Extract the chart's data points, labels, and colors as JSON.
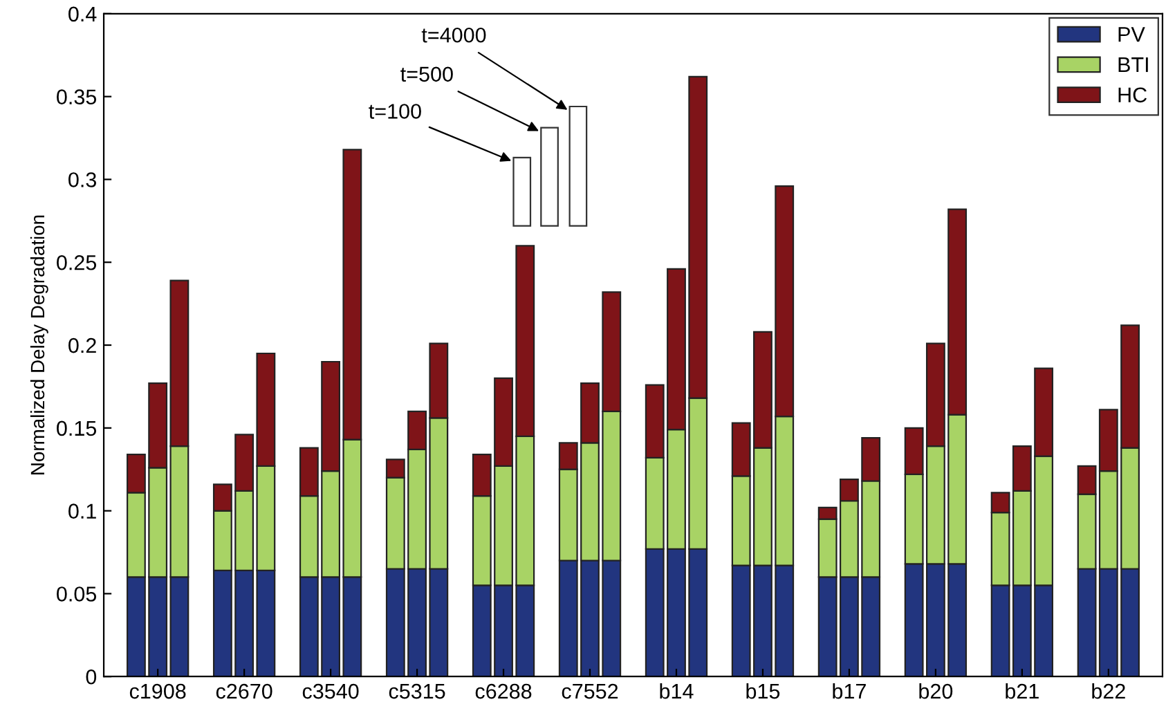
{
  "chart_data": {
    "type": "bar",
    "stacked": true,
    "ylabel": "Normalized Delay Degradation",
    "categories": [
      null,
      "c1908",
      null,
      null,
      null,
      "c2670",
      null,
      null,
      null,
      "c3540",
      null,
      null,
      null,
      "c5315",
      null,
      null,
      null,
      "c6288",
      null,
      null,
      null,
      "c7552",
      null,
      null,
      null,
      "b14",
      null,
      null,
      null,
      "b15",
      null,
      null,
      null,
      "b17",
      null,
      null,
      null,
      "b20",
      null,
      null,
      null,
      "b21",
      null,
      null,
      null,
      "b22",
      null
    ],
    "series": [
      {
        "name": "PV",
        "color": "#22357f",
        "values": [
          0.06,
          0.06,
          0.06,
          null,
          0.064,
          0.064,
          0.064,
          null,
          0.06,
          0.06,
          0.06,
          null,
          0.065,
          0.065,
          0.065,
          null,
          0.055,
          0.055,
          0.055,
          null,
          0.07,
          0.07,
          0.07,
          null,
          0.077,
          0.077,
          0.077,
          null,
          0.067,
          0.067,
          0.067,
          null,
          0.06,
          0.06,
          0.06,
          null,
          0.068,
          0.068,
          0.068,
          null,
          0.055,
          0.055,
          0.055,
          null,
          0.065,
          0.065,
          0.065
        ]
      },
      {
        "name": "BTI",
        "color": "#a8d365",
        "values": [
          0.051,
          0.066,
          0.079,
          null,
          0.036,
          0.048,
          0.063,
          null,
          0.049,
          0.064,
          0.083,
          null,
          0.055,
          0.072,
          0.091,
          null,
          0.054,
          0.072,
          0.09,
          null,
          0.055,
          0.071,
          0.09,
          null,
          0.055,
          0.072,
          0.091,
          null,
          0.054,
          0.071,
          0.09,
          null,
          0.035,
          0.046,
          0.058,
          null,
          0.054,
          0.071,
          0.09,
          null,
          0.044,
          0.057,
          0.078,
          null,
          0.045,
          0.059,
          0.073
        ]
      },
      {
        "name": "HC",
        "color": "#7f1418",
        "values": [
          0.023,
          0.051,
          0.1,
          null,
          0.016,
          0.034,
          0.068,
          null,
          0.029,
          0.066,
          0.175,
          null,
          0.011,
          0.023,
          0.045,
          null,
          0.025,
          0.053,
          0.115,
          null,
          0.016,
          0.036,
          0.072,
          null,
          0.044,
          0.097,
          0.194,
          null,
          0.032,
          0.07,
          0.139,
          null,
          0.007,
          0.013,
          0.026,
          null,
          0.028,
          0.062,
          0.124,
          null,
          0.012,
          0.027,
          0.053,
          null,
          0.017,
          0.037,
          0.074
        ]
      }
    ],
    "ylim": [
      0,
      0.4
    ],
    "yticks": [
      0,
      0.05,
      0.1,
      0.15,
      0.2,
      0.25,
      0.3,
      0.35,
      0.4
    ],
    "legend": "top right",
    "annotations": [
      "t=100",
      "t=500",
      "t=4000"
    ]
  }
}
